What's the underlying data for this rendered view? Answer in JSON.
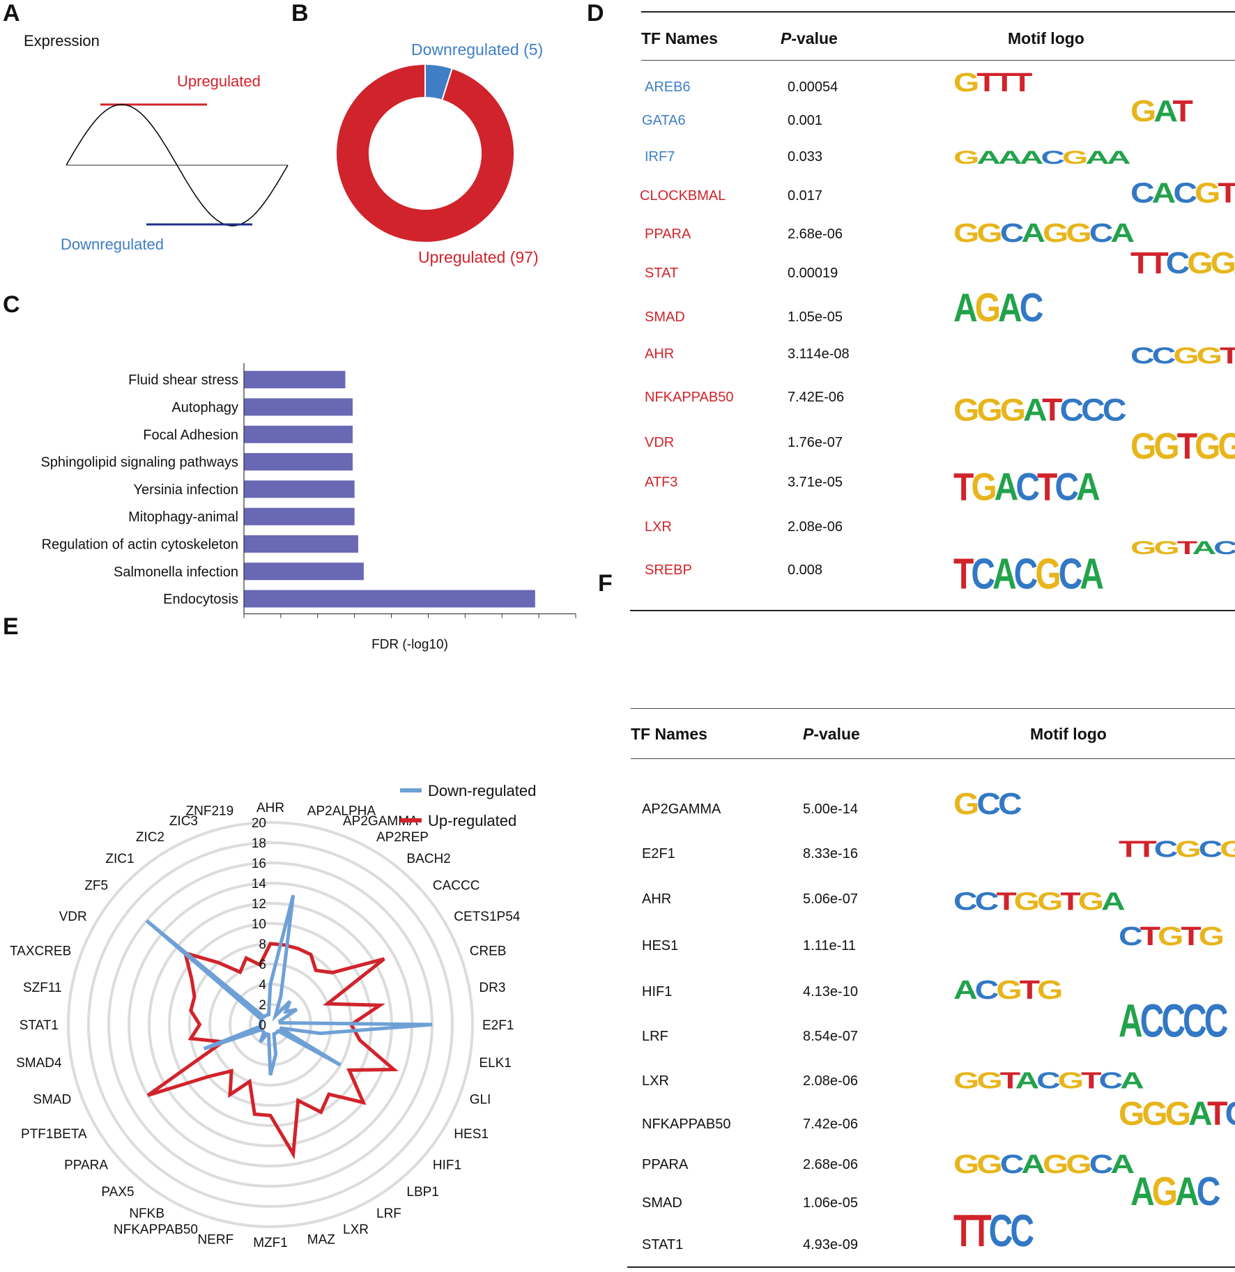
{
  "panels": {
    "a": "A",
    "b": "B",
    "c": "C",
    "d": "D",
    "e": "E",
    "f": "F"
  },
  "panel_a": {
    "title": "Expression",
    "up": "Upregulated",
    "down": "Downregulated"
  },
  "colors": {
    "up": "#d1232b",
    "down": "#3f7ec4",
    "bar": "#6868b4",
    "grid": "#dcdcdc"
  },
  "chart_data": [
    {
      "type": "pie",
      "panel": "B",
      "slices": [
        {
          "label": "Downregulated (5)",
          "value": 5,
          "color": "#3f7ec4"
        },
        {
          "label": "Upregulated (97)",
          "value": 97,
          "color": "#d1232b"
        }
      ]
    },
    {
      "type": "bar",
      "panel": "C",
      "orientation": "horizontal",
      "categories": [
        "Fluid shear stress",
        "Autophagy",
        "Focal Adhesion",
        "Sphingolipid signaling pathways",
        "Yersinia infection",
        "Mitophagy-animal",
        "Regulation of actin cytoskeleton",
        "Salmonella infection",
        "Endocytosis"
      ],
      "values": [
        2.75,
        2.95,
        2.95,
        2.95,
        3.0,
        3.0,
        3.1,
        3.25,
        7.9
      ],
      "xlabel": "FDR (-log10)",
      "xlim": [
        0,
        9
      ]
    },
    {
      "type": "radar",
      "panel": "E",
      "categories": [
        "AHR",
        "AP2ALPHA",
        "AP2GAMMA",
        "AP2REP",
        "BACH2",
        "CACCC",
        "CETS1P54",
        "CREB",
        "DR3",
        "E2F1",
        "ELK1",
        "GLI",
        "HES1",
        "HIF1",
        "LBP1",
        "LRF",
        "LXR",
        "MAZ",
        "MZF1",
        "NERF",
        "NFKAPPAB50",
        "NFKB",
        "PAX5",
        "PPARA",
        "PTF1BETA",
        "SMAD",
        "SMAD4",
        "STAT1",
        "SZF11",
        "TAXCREB",
        "VDR",
        "ZF5",
        "ZIC1",
        "ZIC2",
        "ZIC3",
        "ZNF219"
      ],
      "series": [
        {
          "name": "Down-regulated",
          "color": "#6ea0d6",
          "values": [
            4,
            13,
            3,
            1,
            3,
            2,
            3,
            1,
            1,
            16,
            5,
            1,
            8,
            1,
            1,
            1,
            1,
            3,
            5,
            1,
            1,
            2,
            1,
            1,
            1,
            7,
            1,
            1,
            1,
            1,
            1,
            16,
            1,
            1,
            1,
            1
          ]
        },
        {
          "name": "Up-regulated",
          "color": "#d1232b",
          "values": [
            8,
            8,
            8,
            8,
            7,
            8,
            13,
            6,
            11,
            8,
            9,
            13,
            9,
            12,
            9,
            10,
            8,
            13,
            9,
            9,
            6,
            8,
            6,
            8,
            14,
            5,
            8,
            7,
            8,
            8,
            9,
            11,
            8,
            6,
            7,
            6
          ]
        }
      ],
      "rlim": [
        0,
        20
      ],
      "ticks": [
        "0",
        "2",
        "4",
        "6",
        "8",
        "10",
        "12",
        "14",
        "16",
        "18",
        "20"
      ],
      "legend": "top-right"
    }
  ],
  "table_d": {
    "headers": {
      "name": "TF Names",
      "pval_i": "P",
      "pval_rest": "-value",
      "logo": "Motif logo"
    },
    "rows": [
      {
        "name": "AREB6",
        "p": "0.00054",
        "dir": "down"
      },
      {
        "name": "GATA6",
        "p": "0.001",
        "dir": "down"
      },
      {
        "name": "IRF7",
        "p": "0.033",
        "dir": "down"
      },
      {
        "name": "CLOCKBMAL",
        "p": "0.017",
        "dir": "up"
      },
      {
        "name": "PPARA",
        "p": "2.68e-06",
        "dir": "up"
      },
      {
        "name": "STAT",
        "p": "0.00019",
        "dir": "up"
      },
      {
        "name": "SMAD",
        "p": "1.05e-05",
        "dir": "up"
      },
      {
        "name": "AHR",
        "p": "3.114e-08",
        "dir": "up"
      },
      {
        "name": "NFKAPPAB50",
        "p": "7.42E-06",
        "dir": "up"
      },
      {
        "name": "VDR",
        "p": "1.76e-07",
        "dir": "up"
      },
      {
        "name": "ATF3",
        "p": "3.71e-05",
        "dir": "up"
      },
      {
        "name": "LXR",
        "p": "2.08e-06",
        "dir": "up"
      },
      {
        "name": "SREBP",
        "p": "0.008",
        "dir": "up"
      }
    ]
  },
  "table_f": {
    "headers": {
      "name": "TF Names",
      "pval_i": "P",
      "pval_rest": "-value",
      "logo": "Motif logo"
    },
    "rows": [
      {
        "name": "AP2GAMMA",
        "p": "5.00e-14"
      },
      {
        "name": "E2F1",
        "p": "8.33e-16"
      },
      {
        "name": "AHR",
        "p": "5.06e-07"
      },
      {
        "name": "HES1",
        "p": "1.11e-11"
      },
      {
        "name": "HIF1",
        "p": "4.13e-10"
      },
      {
        "name": "LRF",
        "p": "8.54e-07"
      },
      {
        "name": "LXR",
        "p": "2.08e-06"
      },
      {
        "name": "NFKAPPAB50",
        "p": "7.42e-06"
      },
      {
        "name": "PPARA",
        "p": "2.68e-06"
      },
      {
        "name": "SMAD",
        "p": "1.06e-05"
      },
      {
        "name": "STAT1",
        "p": "4.93e-09"
      }
    ]
  }
}
